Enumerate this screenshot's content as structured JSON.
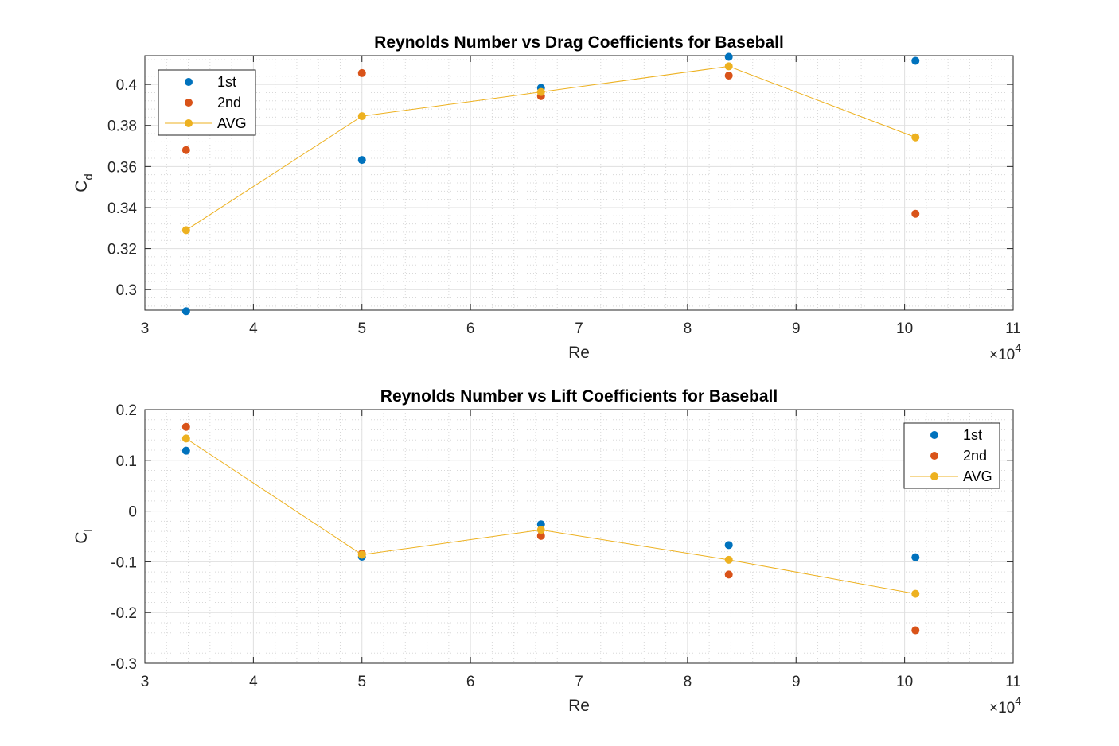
{
  "chart_data": [
    {
      "type": "scatter",
      "title": "Reynolds Number vs Drag Coefficients for Baseball",
      "xlabel": "Re",
      "ylabel": "C",
      "ylabel_sub": "d",
      "x_multiplier": "×10",
      "x_multiplier_exp": "4",
      "xlim": [
        30000,
        110000
      ],
      "ylim": [
        0.29,
        0.414
      ],
      "xticks": [
        30000,
        40000,
        50000,
        60000,
        70000,
        80000,
        90000,
        100000,
        110000
      ],
      "xtick_labels": [
        "3",
        "4",
        "5",
        "6",
        "7",
        "8",
        "9",
        "10",
        "11"
      ],
      "yticks": [
        0.3,
        0.32,
        0.34,
        0.36,
        0.38,
        0.4
      ],
      "ytick_labels": [
        "0.3",
        "0.32",
        "0.34",
        "0.36",
        "0.38",
        "0.4"
      ],
      "grid": true,
      "minor_grid": true,
      "legend_position": "top-left",
      "x": [
        33800,
        50000,
        66500,
        83800,
        101000
      ],
      "series": [
        {
          "name": "1st",
          "color": "#0072BD",
          "style": "markers",
          "values": [
            0.2895,
            0.3632,
            0.3983,
            0.4134,
            0.4115
          ]
        },
        {
          "name": "2nd",
          "color": "#D95319",
          "style": "markers",
          "values": [
            0.368,
            0.4055,
            0.3943,
            0.4043,
            0.337
          ]
        },
        {
          "name": "AVG",
          "color": "#EDB120",
          "style": "line+markers",
          "values": [
            0.329,
            0.3845,
            0.3963,
            0.4088,
            0.3742
          ]
        }
      ]
    },
    {
      "type": "scatter",
      "title": "Reynolds Number vs Lift Coefficients for Baseball",
      "xlabel": "Re",
      "ylabel": "C",
      "ylabel_sub": "l",
      "x_multiplier": "×10",
      "x_multiplier_exp": "4",
      "xlim": [
        30000,
        110000
      ],
      "ylim": [
        -0.3,
        0.2
      ],
      "xticks": [
        30000,
        40000,
        50000,
        60000,
        70000,
        80000,
        90000,
        100000,
        110000
      ],
      "xtick_labels": [
        "3",
        "4",
        "5",
        "6",
        "7",
        "8",
        "9",
        "10",
        "11"
      ],
      "yticks": [
        -0.3,
        -0.2,
        -0.1,
        0,
        0.1,
        0.2
      ],
      "ytick_labels": [
        "-0.3",
        "-0.2",
        "-0.1",
        "0",
        "0.1",
        "0.2"
      ],
      "grid": true,
      "minor_grid": true,
      "legend_position": "top-right",
      "x": [
        33800,
        50000,
        66500,
        83800,
        101000
      ],
      "series": [
        {
          "name": "1st",
          "color": "#0072BD",
          "style": "markers",
          "values": [
            0.119,
            -0.09,
            -0.026,
            -0.067,
            -0.091
          ]
        },
        {
          "name": "2nd",
          "color": "#D95319",
          "style": "markers",
          "values": [
            0.166,
            -0.084,
            -0.049,
            -0.125,
            -0.235
          ]
        },
        {
          "name": "AVG",
          "color": "#EDB120",
          "style": "line+markers",
          "values": [
            0.143,
            -0.086,
            -0.037,
            -0.096,
            -0.163
          ]
        }
      ]
    }
  ]
}
